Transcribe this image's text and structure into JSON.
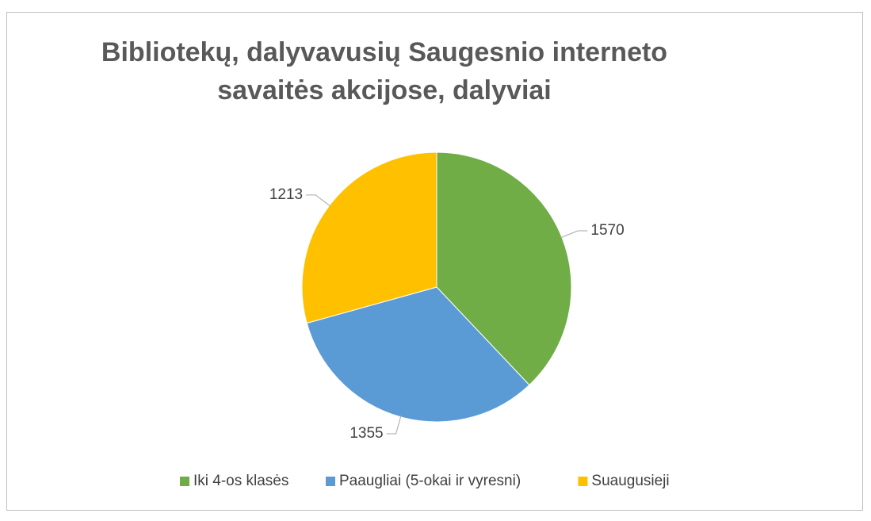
{
  "chart_data": {
    "type": "pie",
    "title": "Bibliotekų, dalyvavusių Saugesnio interneto savaitės akcijose, dalyviai",
    "categories": [
      "Iki 4-os klasės",
      "Paaugliai (5-okai ir vyresni)",
      "Suaugusieji"
    ],
    "values": [
      1570,
      1355,
      1213
    ],
    "colors": [
      "#70ad47",
      "#5b9bd5",
      "#ffc000"
    ],
    "legend": "bottom"
  }
}
